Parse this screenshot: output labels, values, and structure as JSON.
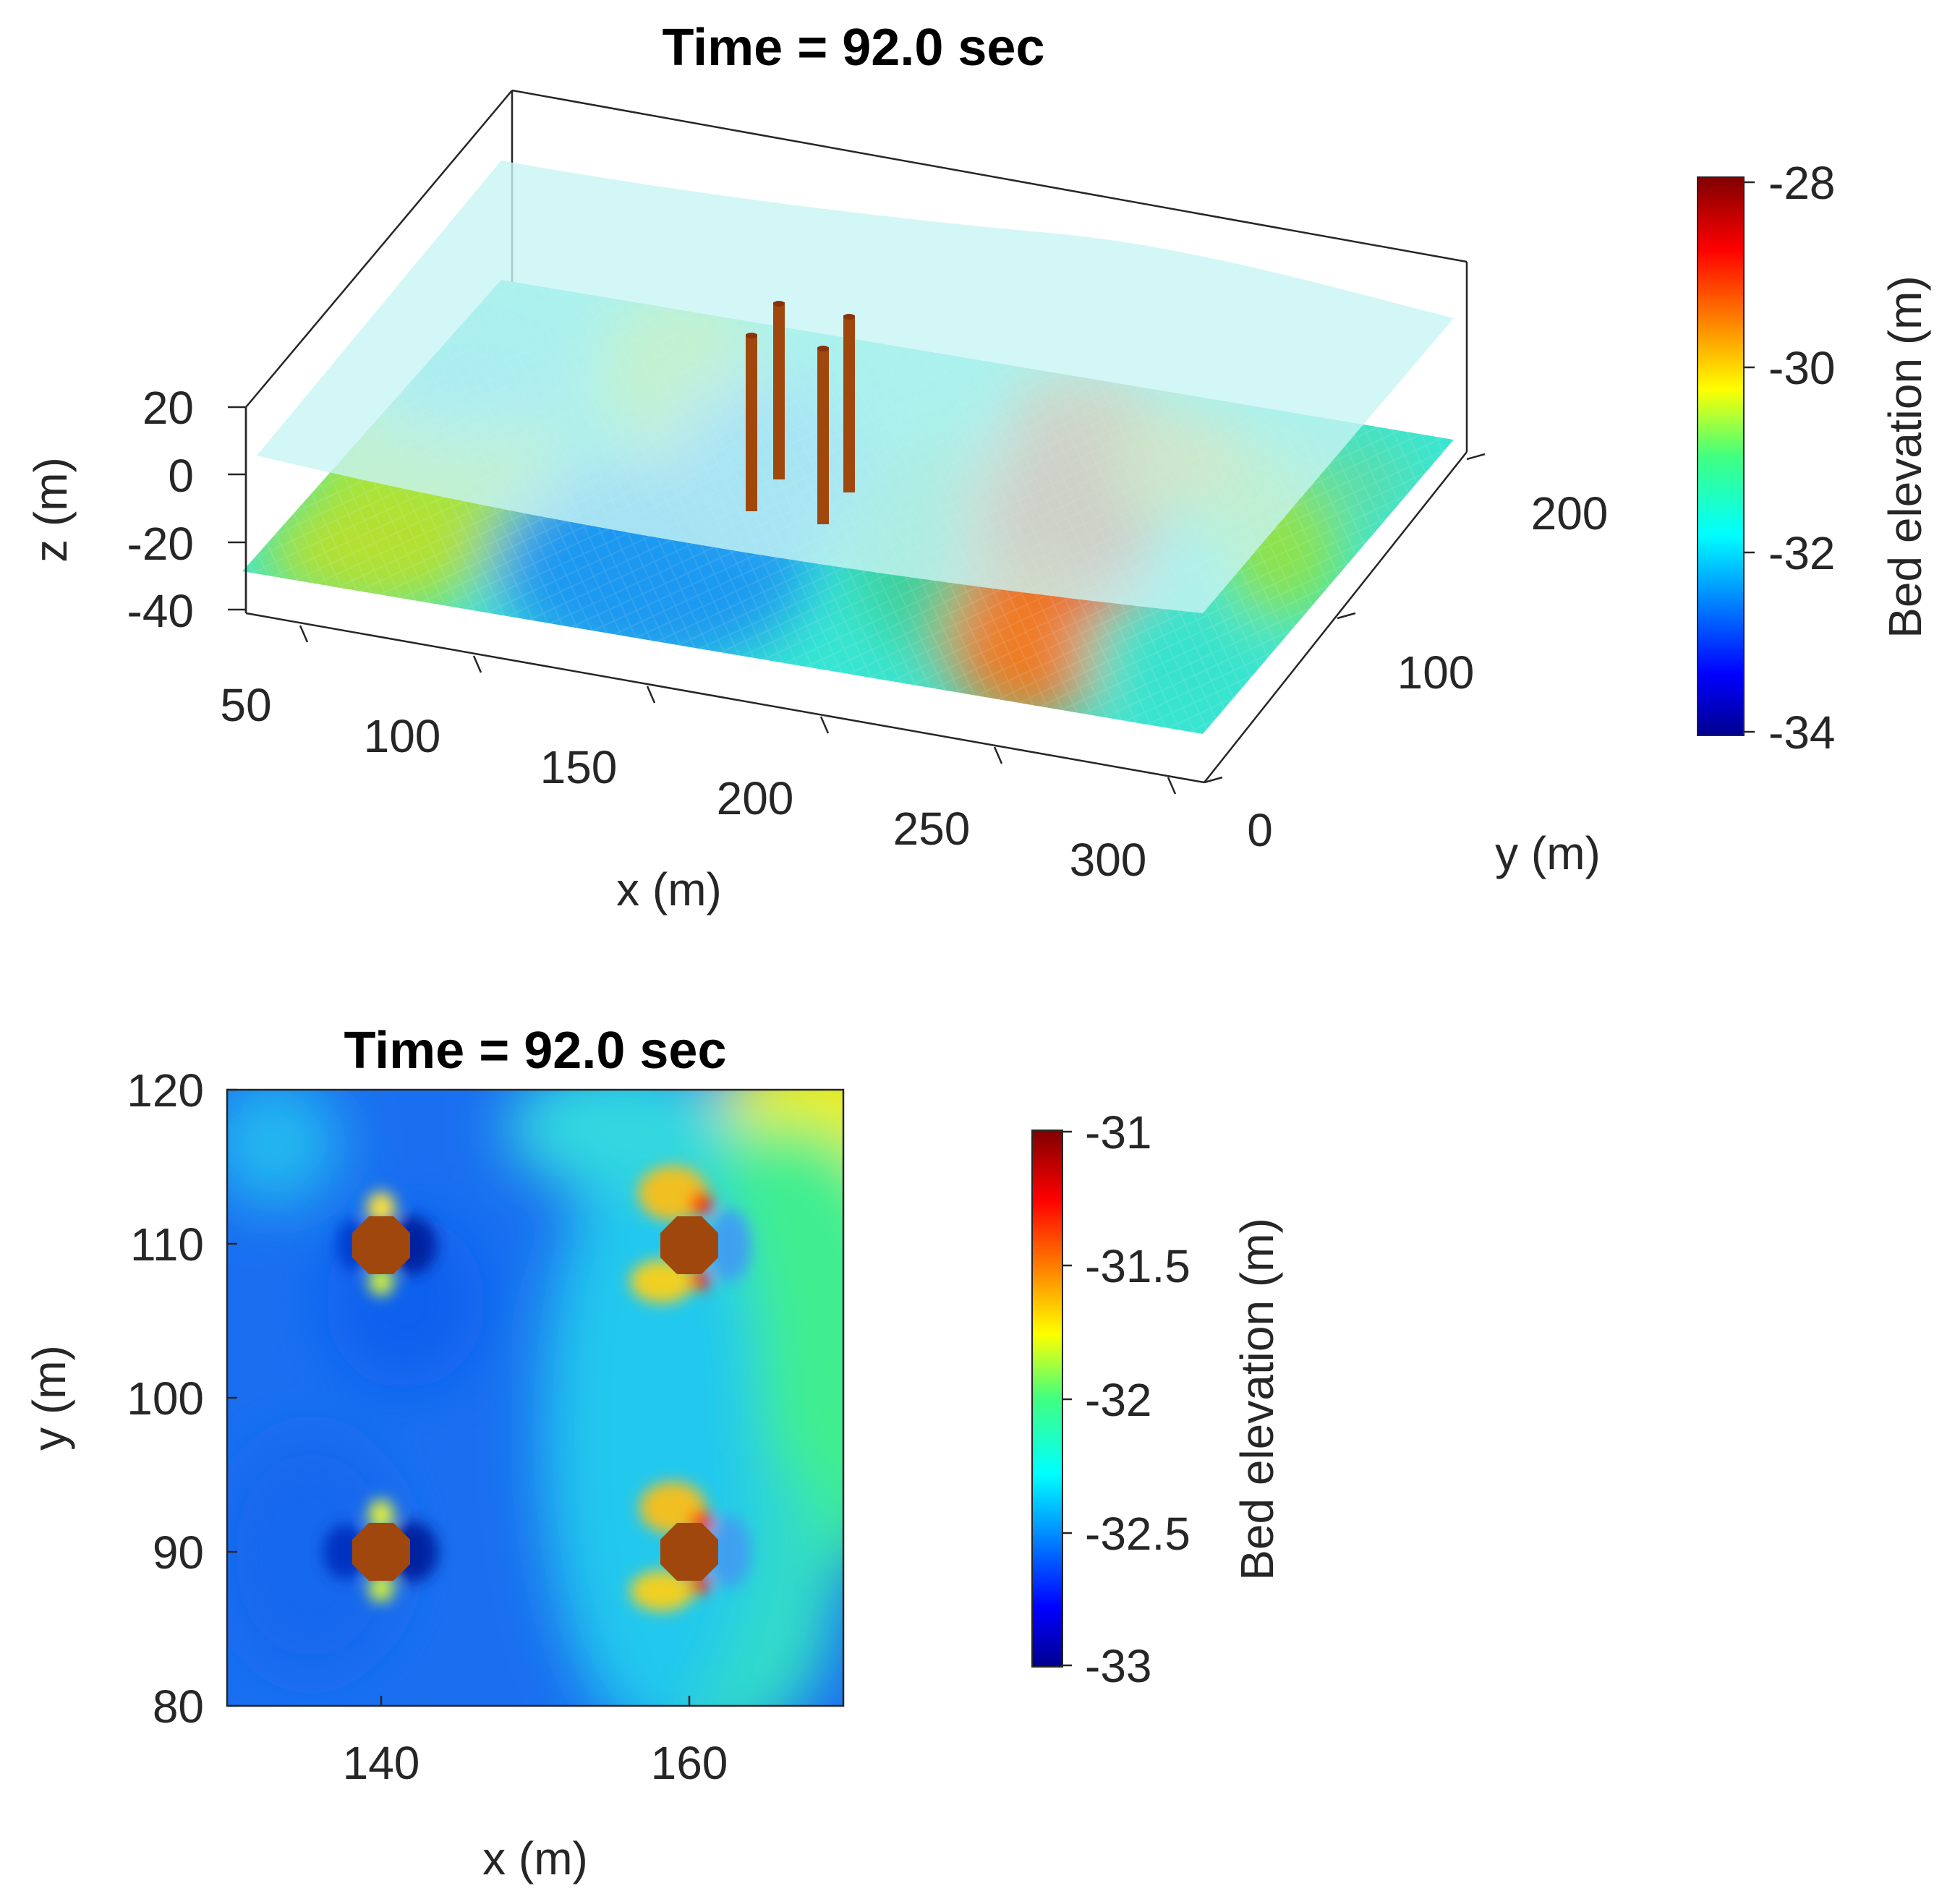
{
  "chart_data": [
    {
      "type": "surface",
      "title": "Time = 92.0 sec",
      "xlabel": "x (m)",
      "ylabel": "y (m)",
      "zlabel": "z (m)",
      "x_ticks": [
        "50",
        "100",
        "150",
        "200",
        "250",
        "300"
      ],
      "y_ticks": [
        "0",
        "100",
        "200"
      ],
      "z_ticks": [
        "20",
        "0",
        "-20",
        "-40"
      ],
      "xlim": [
        30,
        320
      ],
      "ylim": [
        -10,
        240
      ],
      "zlim": [
        -40,
        20
      ],
      "piles": [
        {
          "x": 140,
          "y": 90
        },
        {
          "x": 140,
          "y": 110
        },
        {
          "x": 160,
          "y": 90
        },
        {
          "x": 160,
          "y": 110
        }
      ],
      "water_surface_z": 0,
      "colorbar": {
        "label": "Bed elevation (m)",
        "ticks": [
          "-28",
          "-30",
          "-32",
          "-34"
        ],
        "range": [
          -34,
          -28
        ],
        "colormap": "jet"
      }
    },
    {
      "type": "heatmap",
      "title": "Time = 92.0 sec",
      "xlabel": "x (m)",
      "ylabel": "y (m)",
      "x_ticks": [
        "140",
        "160"
      ],
      "y_ticks": [
        "120",
        "110",
        "100",
        "90",
        "80"
      ],
      "xlim": [
        130,
        170
      ],
      "ylim": [
        80,
        120
      ],
      "piles": [
        {
          "x": 140,
          "y": 110
        },
        {
          "x": 160,
          "y": 110
        },
        {
          "x": 140,
          "y": 90
        },
        {
          "x": 160,
          "y": 90
        }
      ],
      "colorbar": {
        "label": "Bed elevation (m)",
        "ticks": [
          "-31",
          "-31.5",
          "-32",
          "-32.5",
          "-33"
        ],
        "range": [
          -33,
          -31
        ],
        "colormap": "jet"
      }
    }
  ],
  "colors": {
    "pile": "#a0470d",
    "pile_top": "#8a3208",
    "water": "#c8f4f4",
    "axis": "#262626"
  }
}
